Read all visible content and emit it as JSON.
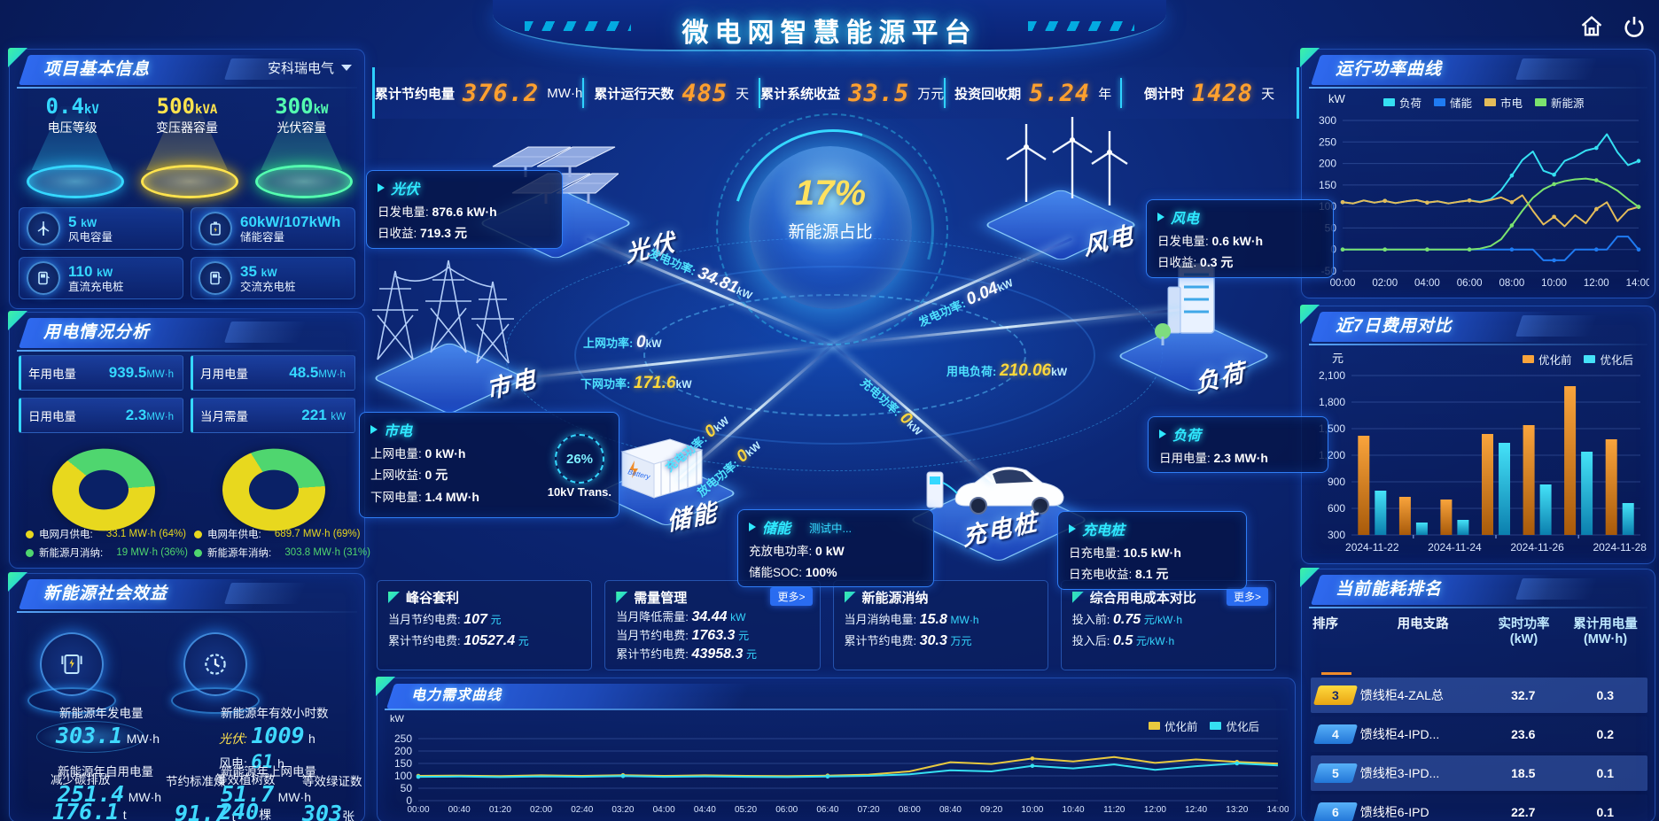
{
  "colors": {
    "accent_cyan": "#2fd3ff",
    "accent_orange": "#ffa02e",
    "accent_yellow": "#ffe15e",
    "accent_green": "#54ffb0",
    "panel_border": "#2b6cf0",
    "bg": "#0a2068"
  },
  "header": {
    "title": "微电网智慧能源平台"
  },
  "top_stats": [
    {
      "label": "累计节约电量",
      "value": "376.2",
      "unit": "MW·h"
    },
    {
      "label": "累计运行天数",
      "value": "485",
      "unit": "天"
    },
    {
      "label": "累计系统收益",
      "value": "33.5",
      "unit": "万元"
    },
    {
      "label": "投资回收期",
      "value": "5.24",
      "unit": "年"
    },
    {
      "label": "倒计时",
      "value": "1428",
      "unit": "天"
    }
  ],
  "project_info": {
    "title": "项目基本信息",
    "company": "安科瑞电气",
    "pedestals": [
      {
        "value": "0.4",
        "unit": "kV",
        "label": "电压等级",
        "color": "#35d8ff"
      },
      {
        "value": "500",
        "unit": "kVA",
        "label": "变压器容量",
        "color": "#ffe34d"
      },
      {
        "value": "300",
        "unit": "kW",
        "label": "光伏容量",
        "color": "#54ffb0"
      }
    ],
    "cards": [
      {
        "value": "5",
        "unit": "kW",
        "label": "风电容量",
        "icon": "wind-turbine-icon"
      },
      {
        "value": "60kW/107kWh",
        "unit": "",
        "label": "储能容量",
        "icon": "battery-icon"
      },
      {
        "value": "110",
        "unit": "kW",
        "label": "直流充电桩",
        "icon": "dc-charger-icon"
      },
      {
        "value": "35",
        "unit": "kW",
        "label": "交流充电桩",
        "icon": "ac-charger-icon"
      }
    ]
  },
  "power_analysis": {
    "title": "用电情况分析",
    "stats": [
      {
        "label": "年用电量",
        "value": "939.5",
        "unit": "MW·h"
      },
      {
        "label": "月用电量",
        "value": "48.5",
        "unit": "MW·h"
      },
      {
        "label": "日用电量",
        "value": "2.3",
        "unit": "MW·h"
      },
      {
        "label": "当月需量",
        "value": "221",
        "unit": "kW"
      }
    ],
    "donut_month": {
      "slices": [
        {
          "label": "电网月供电:",
          "value": "33.1 MW·h (64%)",
          "pct": 64,
          "color": "#e8d81e"
        },
        {
          "label": "新能源月消纳:",
          "value": "19 MW·h (36%)",
          "pct": 36,
          "color": "#4fd66f"
        }
      ]
    },
    "donut_year": {
      "slices": [
        {
          "label": "电网年供电:",
          "value": "689.7 MW·h (69%)",
          "pct": 69,
          "color": "#e8d81e"
        },
        {
          "label": "新能源年消纳:",
          "value": "303.8 MW·h (31%)",
          "pct": 31,
          "color": "#4fd66f"
        }
      ]
    }
  },
  "social_benefit": {
    "title": "新能源社会效益",
    "gen_label": "新能源年发电量",
    "gen_value": "303.1",
    "gen_unit": "MW·h",
    "hours_label": "新能源年有效小时数",
    "pv_label": "光伏:",
    "pv_value": "1009",
    "pv_unit": "h",
    "wind_label": "风电:",
    "wind_value": "61",
    "wind_unit": "h",
    "self_label": "新能源年自用电量",
    "self_value": "251.4",
    "self_unit": "MW·h",
    "grid_label": "新能源年上网电量",
    "grid_value": "51.7",
    "grid_unit": "MW·h",
    "carbon_label": "减少碳排放",
    "carbon_value": "176.1",
    "carbon_unit": "t",
    "coal_label": "节约标准煤",
    "coal_value": "91.7",
    "coal_unit": "t",
    "tree_label": "等效植树数",
    "tree_value": "240",
    "tree_unit": "棵",
    "cert_label": "等效绿证数",
    "cert_value": "303",
    "cert_unit": "张"
  },
  "diagram": {
    "center_value": "17%",
    "center_label": "新能源占比",
    "nodes": {
      "pv": "光伏",
      "wind": "风电",
      "grid": "市电",
      "load": "负荷",
      "storage": "储能",
      "charger": "充电桩"
    },
    "pv_box": {
      "title": "光伏",
      "r0l": "日发电量:",
      "r0v": "876.6 kW·h",
      "r1l": "日收益:",
      "r1v": "719.3 元"
    },
    "wind_box": {
      "title": "风电",
      "r0l": "日发电量:",
      "r0v": "0.6 kW·h",
      "r1l": "日收益:",
      "r1v": "0.3 元"
    },
    "grid_box": {
      "title": "市电",
      "r0l": "上网电量:",
      "r0v": "0 kW·h",
      "r1l": "上网收益:",
      "r1v": "0 元",
      "r2l": "下网电量:",
      "r2v": "1.4 MW·h",
      "trans_pct": "26%",
      "trans_label": "10kV Trans."
    },
    "load_box": {
      "title": "负荷",
      "r0l": "日用电量:",
      "r0v": "2.3 MW·h"
    },
    "storage_box": {
      "title": "储能",
      "status": "测试中...",
      "r0l": "充放电功率:",
      "r0v": "0 kW",
      "r1l": "储能SOC:",
      "r1v": "100%"
    },
    "charger_box": {
      "title": "充电桩",
      "r0l": "日充电量:",
      "r0v": "10.5 kW·h",
      "r1l": "日充电收益:",
      "r1v": "8.1 元"
    },
    "flows": {
      "pv_power": {
        "label": "发电功率:",
        "value": "34.81",
        "unit": "kW"
      },
      "wind_power": {
        "label": "发电功率:",
        "value": "0.04",
        "unit": "kW"
      },
      "up_grid": {
        "label": "上网功率:",
        "value": "0",
        "unit": "kW"
      },
      "down_grid": {
        "label": "下网功率:",
        "value": "171.6",
        "unit": "kW"
      },
      "load_power": {
        "label": "用电负荷:",
        "value": "210.06",
        "unit": "kW"
      },
      "storage_charge": {
        "label": "充电功率:",
        "value": "0",
        "unit": "kW"
      },
      "storage_discharge": {
        "label": "放电功率:",
        "value": "0",
        "unit": "kW"
      },
      "charger_charge": {
        "label": "充电功率:",
        "value": "0",
        "unit": "kW"
      }
    }
  },
  "bottom_cards": [
    {
      "title": "峰谷套利",
      "rows": [
        {
          "label": "当月节约电费:",
          "value": "107",
          "unit": "元"
        },
        {
          "label": "累计节约电费:",
          "value": "10527.4",
          "unit": "元"
        }
      ]
    },
    {
      "title": "需量管理",
      "more": "更多>",
      "rows": [
        {
          "label": "当月降低需量:",
          "value": "34.44",
          "unit": "kW"
        },
        {
          "label": "当月节约电费:",
          "value": "1763.3",
          "unit": "元"
        },
        {
          "label": "累计节约电费:",
          "value": "43958.3",
          "unit": "元"
        }
      ]
    },
    {
      "title": "新能源消纳",
      "rows": [
        {
          "label": "当月消纳电量:",
          "value": "15.8",
          "unit": "MW·h"
        },
        {
          "label": "累计节约电费:",
          "value": "30.3",
          "unit": "万元"
        }
      ]
    },
    {
      "title": "综合用电成本对比",
      "more": "更多>",
      "rows": [
        {
          "label": "投入前:",
          "value": "0.75",
          "unit": "元/kW·h"
        },
        {
          "label": "投入后:",
          "value": "0.5",
          "unit": "元/kW·h"
        }
      ]
    }
  ],
  "panels": {
    "run_power": "运行功率曲线",
    "cost": "近7日费用对比",
    "ranking": "当前能耗排名",
    "demand": "电力需求曲线"
  },
  "ranking": {
    "headers": [
      "排序",
      "用电支路",
      "实时功率 (kW)",
      "累计用电量 (MW·h)"
    ],
    "rows": [
      {
        "rank": "3",
        "branch": "馈线柜4-ZAL总",
        "power": "32.7",
        "energy": "0.3"
      },
      {
        "rank": "4",
        "branch": "馈线柜4-IPD...",
        "power": "23.6",
        "energy": "0.2"
      },
      {
        "rank": "5",
        "branch": "馈线柜3-IPD...",
        "power": "18.5",
        "energy": "0.1"
      },
      {
        "rank": "6",
        "branch": "馈线柜6-IPD",
        "power": "22.7",
        "energy": "0.1"
      }
    ]
  },
  "chart_data": [
    {
      "id": "run_power",
      "type": "line",
      "title": "运行功率曲线",
      "ylabel": "kW",
      "ylim": [
        -50,
        300
      ],
      "yticks": [
        300,
        250,
        200,
        150,
        100,
        50,
        0,
        -50
      ],
      "xticks": [
        "00:00",
        "02:00",
        "04:00",
        "06:00",
        "08:00",
        "10:00",
        "12:00",
        "14:00"
      ],
      "legend_position": "top",
      "grid": true,
      "series": [
        {
          "name": "负荷",
          "color": "#35e0f2",
          "values": [
            110,
            107,
            114,
            109,
            113,
            108,
            112,
            115,
            109,
            112,
            107,
            111,
            114,
            111,
            117,
            138,
            172,
            208,
            228,
            183,
            174,
            206,
            216,
            230,
            236,
            268,
            226,
            196,
            206
          ]
        },
        {
          "name": "储能",
          "color": "#1f7bf2",
          "values": [
            0,
            0,
            0,
            0,
            0,
            0,
            0,
            0,
            0,
            0,
            0,
            0,
            0,
            0,
            0,
            0,
            0,
            0,
            0,
            -25,
            -25,
            -25,
            0,
            0,
            0,
            0,
            30,
            30,
            0
          ]
        },
        {
          "name": "市电",
          "color": "#e3bc5a",
          "values": [
            110,
            107,
            114,
            109,
            113,
            108,
            112,
            115,
            109,
            112,
            107,
            111,
            114,
            110,
            115,
            121,
            110,
            126,
            90,
            58,
            76,
            54,
            80,
            61,
            94,
            110,
            66,
            92,
            99
          ]
        },
        {
          "name": "新能源",
          "color": "#7be36e",
          "values": [
            0,
            0,
            0,
            0,
            0,
            0,
            0,
            0,
            0,
            0,
            0,
            0,
            0,
            2,
            8,
            24,
            56,
            90,
            120,
            140,
            152,
            159,
            163,
            165,
            161,
            151,
            137,
            117,
            99
          ]
        }
      ]
    },
    {
      "id": "cost_compare",
      "type": "bar",
      "title": "近7日费用对比",
      "ylabel": "元",
      "ylim": [
        300,
        2100
      ],
      "yticks": [
        2100,
        1800,
        1500,
        1200,
        900,
        600,
        300
      ],
      "ytick_labels": [
        "2,100",
        "1,800",
        "1,500",
        "1,200",
        "900",
        "600",
        "300"
      ],
      "categories": [
        "2024-11-22",
        "2024-11-23",
        "2024-11-24",
        "2024-11-25",
        "2024-11-26",
        "2024-11-27",
        "2024-11-28"
      ],
      "xticks": [
        "2024-11-22",
        "2024-11-24",
        "2024-11-26",
        "2024-11-28"
      ],
      "legend_position": "top-right",
      "grid": true,
      "series": [
        {
          "name": "优化前",
          "color": "#f9a43c",
          "color2": "#a85a0a",
          "values": [
            1420,
            730,
            700,
            1440,
            1540,
            1980,
            1380
          ]
        },
        {
          "name": "优化后",
          "color": "#45e2f8",
          "color2": "#0b7fae",
          "values": [
            800,
            440,
            470,
            1340,
            870,
            1240,
            660
          ]
        }
      ]
    },
    {
      "id": "demand",
      "type": "line",
      "title": "电力需求曲线",
      "ylabel": "kW",
      "ylim": [
        0,
        250
      ],
      "yticks": [
        250,
        200,
        150,
        100,
        50,
        0
      ],
      "xticks": [
        "00:00",
        "00:40",
        "01:20",
        "02:00",
        "02:40",
        "03:20",
        "04:00",
        "04:40",
        "05:20",
        "06:00",
        "06:40",
        "07:20",
        "08:00",
        "08:40",
        "09:20",
        "10:00",
        "10:40",
        "11:20",
        "12:00",
        "12:40",
        "13:20",
        "14:00"
      ],
      "legend_position": "top-right",
      "grid": true,
      "series": [
        {
          "name": "优化前",
          "color": "#e8c93f",
          "values": [
            100,
            101,
            99,
            102,
            100,
            103,
            100,
            102,
            100,
            99,
            101,
            105,
            118,
            155,
            148,
            170,
            158,
            176,
            152,
            166,
            156,
            149
          ]
        },
        {
          "name": "优化后",
          "color": "#35e0f2",
          "values": [
            96,
            97,
            95,
            98,
            96,
            99,
            96,
            98,
            96,
            95,
            97,
            100,
            106,
            122,
            118,
            140,
            130,
            146,
            124,
            139,
            150,
            142
          ]
        }
      ]
    }
  ]
}
